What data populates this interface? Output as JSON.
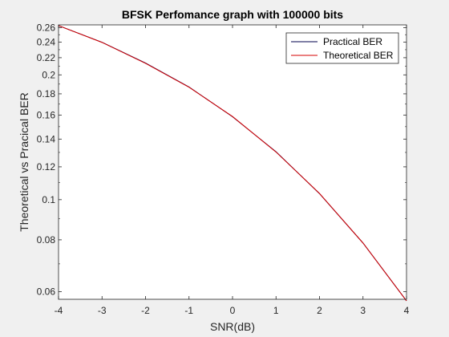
{
  "chart_data": {
    "type": "line",
    "title": "BFSK Perfomance graph with 100000 bits",
    "xlabel": "SNR(dB)",
    "ylabel": "Theoretical vs Pracical BER",
    "xlim": [
      -4,
      4
    ],
    "ylim": [
      0.0575,
      0.264
    ],
    "yscale": "log",
    "grid": false,
    "legend_position": "top-right",
    "xticks": [
      -4,
      -3,
      -2,
      -1,
      0,
      1,
      2,
      3,
      4
    ],
    "xtick_labels": [
      "-4",
      "-3",
      "-2",
      "-1",
      "0",
      "1",
      "2",
      "3",
      "4"
    ],
    "yticks": [
      0.06,
      0.08,
      0.1,
      0.12,
      0.14,
      0.16,
      0.18,
      0.2,
      0.22,
      0.24,
      0.26
    ],
    "ytick_labels": [
      "0.06",
      "0.08",
      "0.1",
      "0.12",
      "0.14",
      "0.16",
      "0.18",
      "0.2",
      "0.22",
      "0.24",
      "0.26"
    ],
    "x": [
      -4,
      -3,
      -2,
      -1,
      0,
      1,
      2,
      3,
      4
    ],
    "series": [
      {
        "name": "Practical BER",
        "color": "#00004d",
        "values": [
          0.2629,
          0.2397,
          0.2136,
          0.187,
          0.1585,
          0.1305,
          0.1034,
          0.0786,
          0.057
        ]
      },
      {
        "name": "Theoretical BER",
        "color": "#d40000",
        "values": [
          0.2629,
          0.2395,
          0.2132,
          0.1867,
          0.1587,
          0.1303,
          0.1035,
          0.0786,
          0.057
        ]
      }
    ]
  }
}
